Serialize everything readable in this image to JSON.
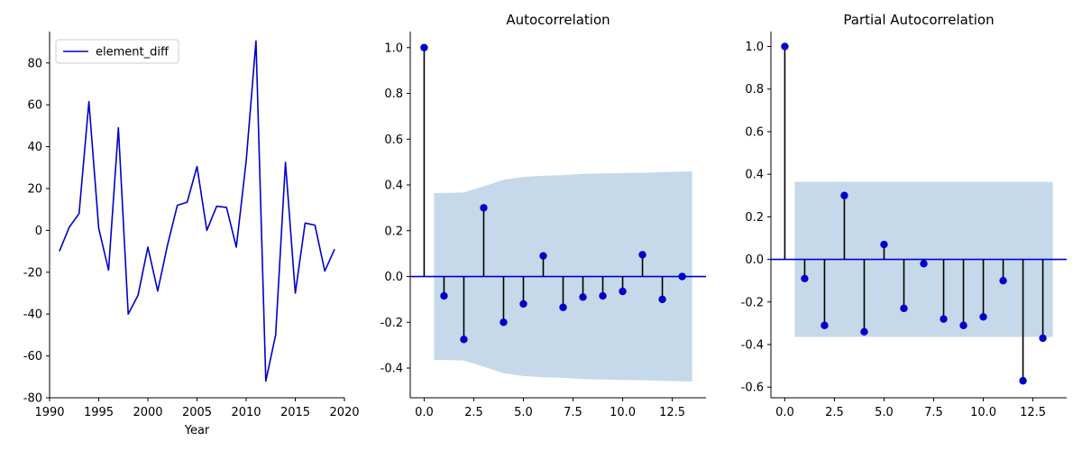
{
  "chart_data": [
    {
      "type": "line",
      "title": "",
      "xlabel": "Year",
      "ylabel": "",
      "xlim": [
        1990,
        2020
      ],
      "ylim": [
        -80,
        95
      ],
      "xticks": [
        1990,
        1995,
        2000,
        2005,
        2010,
        2015,
        2020
      ],
      "yticks": [
        -80,
        -60,
        -40,
        -20,
        0,
        20,
        40,
        60,
        80
      ],
      "legend": {
        "placement": "top-left"
      },
      "grid": false,
      "series": [
        {
          "name": "element_diff",
          "color": "#0000cc",
          "x": [
            1991,
            1992,
            1993,
            1994,
            1995,
            1996,
            1997,
            1998,
            1999,
            2000,
            2001,
            2002,
            2003,
            2004,
            2005,
            2006,
            2007,
            2008,
            2009,
            2010,
            2011,
            2012,
            2013,
            2014,
            2015,
            2016,
            2017,
            2018,
            2019
          ],
          "y": [
            -10,
            1.5,
            8,
            61.5,
            1,
            -19,
            49,
            -40,
            -31,
            -8,
            -29,
            -7,
            12,
            13.5,
            30.5,
            0,
            11.5,
            11,
            -8,
            33,
            90.5,
            -72,
            -50,
            32.5,
            -30,
            3.5,
            2.5,
            -19.5,
            -9
          ]
        }
      ]
    },
    {
      "type": "stem",
      "title": "Autocorrelation",
      "xlabel": "",
      "ylabel": "",
      "xlim": [
        -0.7,
        14.2
      ],
      "ylim": [
        -0.53,
        1.07
      ],
      "xticks": [
        0.0,
        2.5,
        5.0,
        7.5,
        10.0,
        12.5
      ],
      "yticks": [
        -0.4,
        -0.2,
        0.0,
        0.2,
        0.4,
        0.6,
        0.8,
        1.0
      ],
      "grid": false,
      "color": "#0000cc",
      "band_color": "#c5d9ea",
      "lags": [
        0,
        1,
        2,
        3,
        4,
        5,
        6,
        7,
        8,
        9,
        10,
        11,
        12,
        13
      ],
      "values": [
        1.0,
        -0.085,
        -0.275,
        0.3,
        -0.2,
        -0.12,
        0.09,
        -0.135,
        -0.09,
        -0.085,
        -0.065,
        0.095,
        -0.1,
        0.0
      ],
      "confidence_band": [
        {
          "x": 0.5,
          "upper": 0.364
        },
        {
          "x": 2,
          "upper": 0.367
        },
        {
          "x": 3,
          "upper": 0.394
        },
        {
          "x": 4,
          "upper": 0.423
        },
        {
          "x": 5,
          "upper": 0.435
        },
        {
          "x": 6,
          "upper": 0.44
        },
        {
          "x": 7,
          "upper": 0.443
        },
        {
          "x": 8,
          "upper": 0.448
        },
        {
          "x": 9,
          "upper": 0.45
        },
        {
          "x": 10,
          "upper": 0.452
        },
        {
          "x": 11,
          "upper": 0.453
        },
        {
          "x": 12,
          "upper": 0.456
        },
        {
          "x": 13.5,
          "upper": 0.459
        }
      ]
    },
    {
      "type": "stem",
      "title": "Partial Autocorrelation",
      "xlabel": "",
      "ylabel": "",
      "xlim": [
        -0.7,
        14.2
      ],
      "ylim": [
        -0.65,
        1.07
      ],
      "xticks": [
        0.0,
        2.5,
        5.0,
        7.5,
        10.0,
        12.5
      ],
      "yticks": [
        -0.6,
        -0.4,
        -0.2,
        0.0,
        0.2,
        0.4,
        0.6,
        0.8,
        1.0
      ],
      "grid": false,
      "color": "#0000cc",
      "band_color": "#c5d9ea",
      "lags": [
        0,
        1,
        2,
        3,
        4,
        5,
        6,
        7,
        8,
        9,
        10,
        11,
        12,
        13
      ],
      "values": [
        1.0,
        -0.09,
        -0.31,
        0.3,
        -0.34,
        0.07,
        -0.23,
        -0.02,
        -0.28,
        -0.31,
        -0.27,
        -0.1,
        -0.57,
        -0.37
      ],
      "confidence_band": [
        {
          "x": 0.5,
          "upper": 0.364
        },
        {
          "x": 13.5,
          "upper": 0.364
        }
      ]
    }
  ]
}
